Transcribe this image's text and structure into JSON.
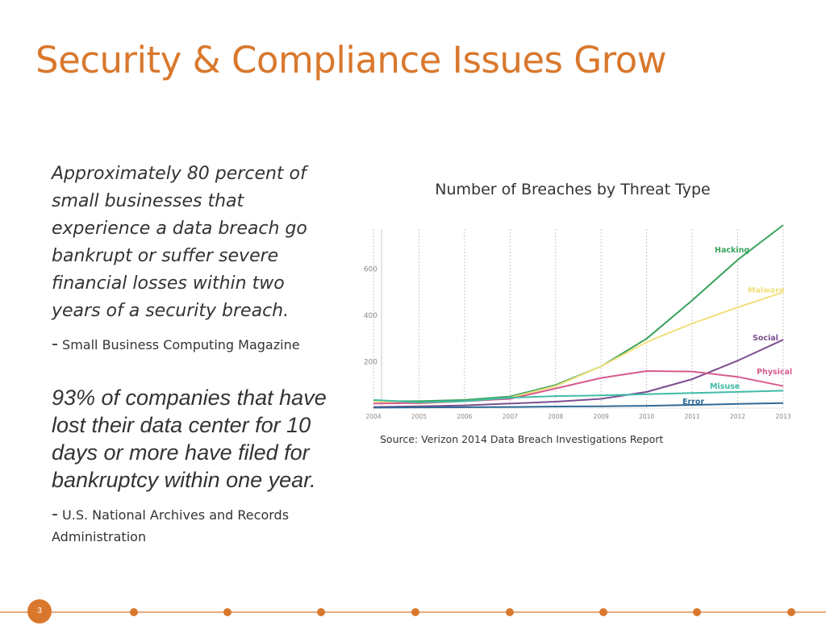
{
  "slide": {
    "title": "Security & Compliance Issues Grow",
    "quote1": "Approximately 80 percent of small businesses that experience a data breach go bankrupt or suffer severe financial losses within two years of a security breach.",
    "attribution1_dash": "-",
    "attribution1": "Small Business Computing Magazine",
    "quote2": "93% of companies that have lost their data center for 10 days or more have filed for bankruptcy within one year.",
    "attribution2_dash": "-",
    "attribution2": "U.S. National Archives and Records Administration",
    "source": "Source: Verizon 2014 Data Breach Investigations Report",
    "page_number": "3",
    "accent_color": "#d9782d"
  },
  "chart_data": {
    "type": "line",
    "title": "Number of Breaches by Threat Type",
    "x": [
      "2004",
      "2005",
      "2006",
      "2007",
      "2008",
      "2009",
      "2010",
      "2011",
      "2012",
      "2013"
    ],
    "y_ticks": [
      200,
      400,
      600
    ],
    "ylim": [
      0,
      790
    ],
    "grid": "vertical dotted",
    "series": [
      {
        "name": "Hacking",
        "color": "#3aa35c",
        "values": [
          30,
          30,
          35,
          50,
          100,
          180,
          300,
          465,
          640,
          790
        ]
      },
      {
        "name": "Malware",
        "color": "#f2e07f",
        "values": [
          30,
          20,
          30,
          45,
          95,
          180,
          285,
          365,
          435,
          500
        ]
      },
      {
        "name": "Social",
        "color": "#7b4f8e",
        "values": [
          5,
          8,
          12,
          20,
          28,
          40,
          70,
          125,
          205,
          295
        ]
      },
      {
        "name": "Physical",
        "color": "#d75a8e",
        "values": [
          20,
          22,
          30,
          40,
          85,
          130,
          160,
          158,
          135,
          95
        ]
      },
      {
        "name": "Misuse",
        "color": "#3fbca6",
        "values": [
          35,
          25,
          30,
          45,
          52,
          55,
          60,
          65,
          70,
          75
        ]
      },
      {
        "name": "Error",
        "color": "#2f6a97",
        "values": [
          2,
          3,
          4,
          5,
          7,
          8,
          10,
          14,
          18,
          22
        ]
      }
    ]
  }
}
